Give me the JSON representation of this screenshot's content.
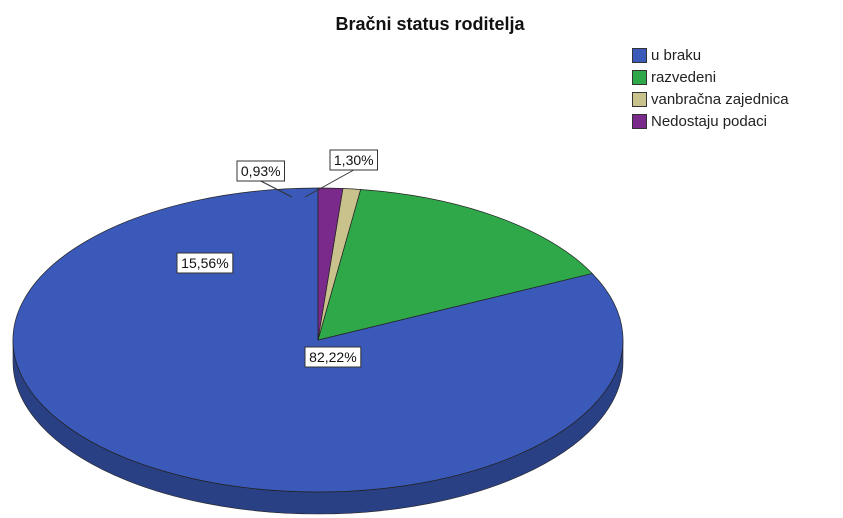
{
  "chart_data": {
    "type": "pie",
    "title": "Bračni status roditelja",
    "legend_position": "top-right",
    "three_d": true,
    "slices": [
      {
        "label": "u braku",
        "value": 82.22,
        "value_label": "82,22%",
        "color": "#3a59b8"
      },
      {
        "label": "razvedeni",
        "value": 15.56,
        "value_label": "15,56%",
        "color": "#2fa84a"
      },
      {
        "label": "vanbračna zajednica",
        "value": 0.93,
        "value_label": "0,93%",
        "color": "#c9c28d"
      },
      {
        "label": "Nedostaju podaci",
        "value": 1.3,
        "value_label": "1,30%",
        "color": "#7a2a8a"
      }
    ]
  }
}
